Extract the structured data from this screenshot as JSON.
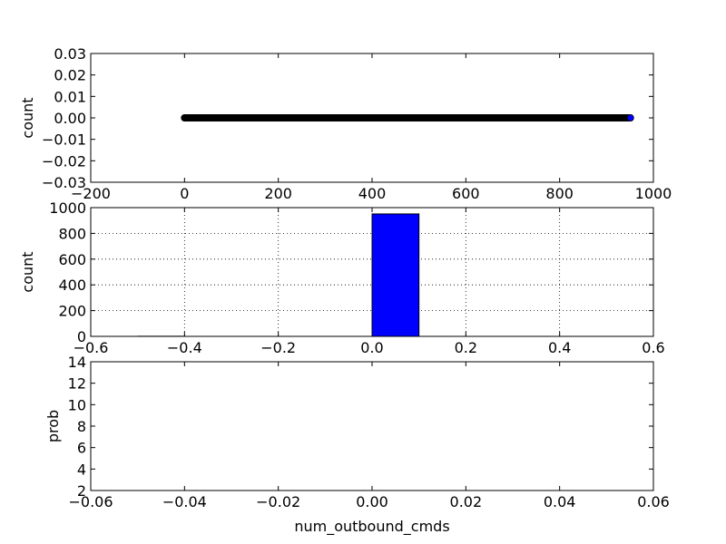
{
  "chart_data": [
    {
      "type": "scatter",
      "xlabel": "",
      "ylabel": "count",
      "xlim": [
        -200,
        1000
      ],
      "ylim": [
        -0.03,
        0.03
      ],
      "xticks": [
        "−200",
        "0",
        "200",
        "400",
        "600",
        "800",
        "1000"
      ],
      "yticks": [
        "−0.03",
        "−0.02",
        "−0.01",
        "0.00",
        "0.01",
        "0.02",
        "0.03"
      ],
      "grid": false,
      "series": [
        {
          "x_start": 0,
          "x_end": 951,
          "y": 0,
          "marker_color": "#000000",
          "last_point_color": "#0000ff"
        }
      ]
    },
    {
      "type": "bar",
      "xlabel": "",
      "ylabel": "count",
      "xlim": [
        -0.6,
        0.6
      ],
      "ylim": [
        0,
        1000
      ],
      "xticks": [
        "−0.6",
        "−0.4",
        "−0.2",
        "0.0",
        "0.2",
        "0.4",
        "0.6"
      ],
      "yticks": [
        "0",
        "200",
        "400",
        "600",
        "800",
        "1000"
      ],
      "grid": true,
      "bins": [
        {
          "x0": -0.5,
          "x1": -0.4,
          "value": 1
        },
        {
          "x0": -0.4,
          "x1": -0.3,
          "value": 0
        },
        {
          "x0": -0.3,
          "x1": -0.2,
          "value": 0
        },
        {
          "x0": -0.2,
          "x1": -0.1,
          "value": 0
        },
        {
          "x0": -0.1,
          "x1": 0.0,
          "value": 0
        },
        {
          "x0": 0.0,
          "x1": 0.1,
          "value": 951
        },
        {
          "x0": 0.1,
          "x1": 0.2,
          "value": 0
        },
        {
          "x0": 0.2,
          "x1": 0.3,
          "value": 0
        },
        {
          "x0": 0.3,
          "x1": 0.4,
          "value": 0
        },
        {
          "x0": 0.4,
          "x1": 0.5,
          "value": 0
        }
      ],
      "bar_color": "#0000ff"
    },
    {
      "type": "line",
      "xlabel": "num_outbound_cmds",
      "ylabel": "prob",
      "xlim": [
        -0.06,
        0.06
      ],
      "ylim": [
        2,
        14
      ],
      "xticks": [
        "−0.06",
        "−0.04",
        "−0.02",
        "0.00",
        "0.02",
        "0.04",
        "0.06"
      ],
      "yticks": [
        "2",
        "4",
        "6",
        "8",
        "10",
        "12",
        "14"
      ],
      "grid": false,
      "series": []
    }
  ]
}
